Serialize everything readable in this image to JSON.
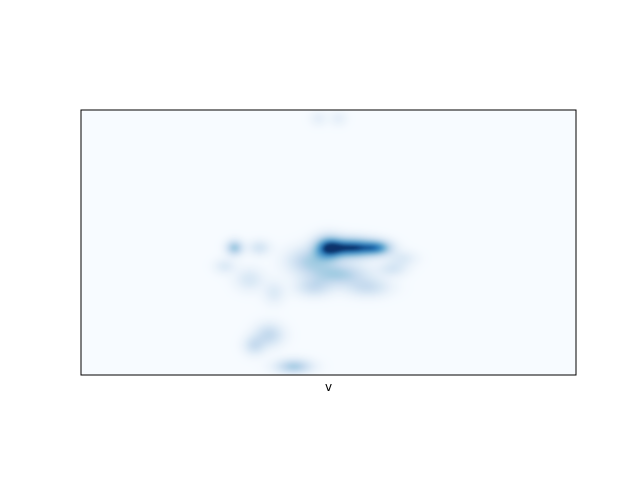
{
  "chart_data": {
    "type": "heatmap",
    "title": "",
    "xlabel": "v",
    "ylabel": "",
    "x_ticks": [],
    "y_ticks": [],
    "colormap": "Blues",
    "background_color": "#f7fbff",
    "peak_color": "#08306b",
    "xlim": [
      0,
      1
    ],
    "ylim": [
      0,
      1
    ],
    "grid": false,
    "density_blobs": [
      {
        "x": 0.48,
        "y": 0.97,
        "sx": 0.012,
        "sy": 0.02,
        "intensity": 0.1
      },
      {
        "x": 0.52,
        "y": 0.97,
        "sx": 0.012,
        "sy": 0.02,
        "intensity": 0.1
      },
      {
        "x": 0.5,
        "y": 0.48,
        "sx": 0.02,
        "sy": 0.03,
        "intensity": 0.85
      },
      {
        "x": 0.55,
        "y": 0.48,
        "sx": 0.03,
        "sy": 0.025,
        "intensity": 0.95
      },
      {
        "x": 0.6,
        "y": 0.48,
        "sx": 0.02,
        "sy": 0.02,
        "intensity": 0.6
      },
      {
        "x": 0.46,
        "y": 0.43,
        "sx": 0.03,
        "sy": 0.035,
        "intensity": 0.35
      },
      {
        "x": 0.52,
        "y": 0.38,
        "sx": 0.04,
        "sy": 0.03,
        "intensity": 0.4
      },
      {
        "x": 0.58,
        "y": 0.33,
        "sx": 0.03,
        "sy": 0.025,
        "intensity": 0.25
      },
      {
        "x": 0.47,
        "y": 0.33,
        "sx": 0.025,
        "sy": 0.025,
        "intensity": 0.25
      },
      {
        "x": 0.63,
        "y": 0.4,
        "sx": 0.02,
        "sy": 0.02,
        "intensity": 0.18
      },
      {
        "x": 0.65,
        "y": 0.44,
        "sx": 0.02,
        "sy": 0.02,
        "intensity": 0.15
      },
      {
        "x": 0.31,
        "y": 0.48,
        "sx": 0.012,
        "sy": 0.02,
        "intensity": 0.45
      },
      {
        "x": 0.36,
        "y": 0.48,
        "sx": 0.015,
        "sy": 0.02,
        "intensity": 0.2
      },
      {
        "x": 0.29,
        "y": 0.41,
        "sx": 0.015,
        "sy": 0.02,
        "intensity": 0.15
      },
      {
        "x": 0.34,
        "y": 0.36,
        "sx": 0.02,
        "sy": 0.03,
        "intensity": 0.18
      },
      {
        "x": 0.39,
        "y": 0.31,
        "sx": 0.015,
        "sy": 0.03,
        "intensity": 0.15
      },
      {
        "x": 0.38,
        "y": 0.15,
        "sx": 0.02,
        "sy": 0.03,
        "intensity": 0.3
      },
      {
        "x": 0.35,
        "y": 0.11,
        "sx": 0.015,
        "sy": 0.025,
        "intensity": 0.25
      },
      {
        "x": 0.43,
        "y": 0.03,
        "sx": 0.025,
        "sy": 0.02,
        "intensity": 0.4
      }
    ]
  }
}
